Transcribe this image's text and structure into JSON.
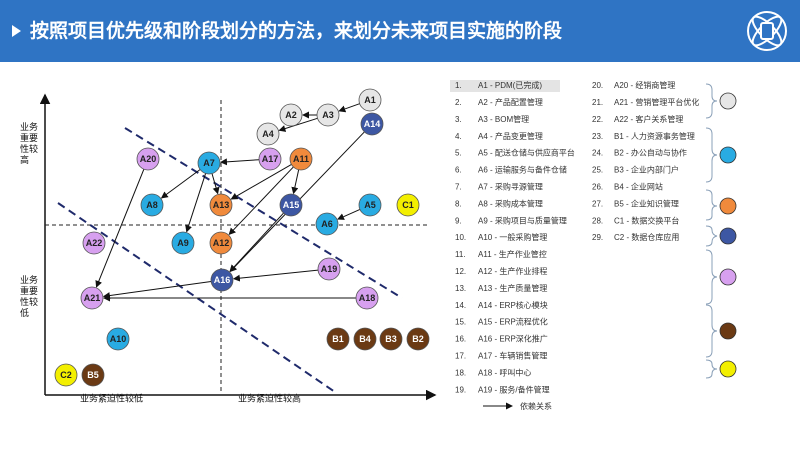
{
  "header": {
    "title": "按照项目优先级和阶段划分的方法，来划分未来项目实施的阶段"
  },
  "axes": {
    "y_high": "业务重要性较高",
    "y_low": "业务重要性较低",
    "x_low": "业务紧迫性较低",
    "x_high": "业务紧迫性较高"
  },
  "nodes": [
    {
      "label": "A1"
    },
    {
      "label": "A2"
    },
    {
      "label": "A3"
    },
    {
      "label": "A4"
    },
    {
      "label": "A14"
    },
    {
      "label": "A20"
    },
    {
      "label": "A7"
    },
    {
      "label": "A17"
    },
    {
      "label": "A11"
    },
    {
      "label": "A8"
    },
    {
      "label": "A13"
    },
    {
      "label": "A15"
    },
    {
      "label": "A5"
    },
    {
      "label": "C1"
    },
    {
      "label": "A6"
    },
    {
      "label": "A22"
    },
    {
      "label": "A9"
    },
    {
      "label": "A12"
    },
    {
      "label": "A19"
    },
    {
      "label": "A16"
    },
    {
      "label": "A21"
    },
    {
      "label": "A18"
    },
    {
      "label": "A10"
    },
    {
      "label": "B1"
    },
    {
      "label": "B4"
    },
    {
      "label": "B3"
    },
    {
      "label": "B2"
    },
    {
      "label": "C2"
    },
    {
      "label": "B5"
    }
  ],
  "legend": {
    "items": [
      {
        "num": "1.",
        "text": "A1 - PDM(已完成)"
      },
      {
        "num": "2.",
        "text": "A2 - 产品配置管理"
      },
      {
        "num": "3.",
        "text": "A3 - BOM管理"
      },
      {
        "num": "4.",
        "text": "A4 - 产品变更管理"
      },
      {
        "num": "5.",
        "text": "A5 - 配送仓储与供应商平台"
      },
      {
        "num": "6.",
        "text": "A6 - 运输服务与备件仓储"
      },
      {
        "num": "7.",
        "text": "A7 - 采购寻源管理"
      },
      {
        "num": "8.",
        "text": "A8 - 采购成本管理"
      },
      {
        "num": "9.",
        "text": "A9 - 采购项目与质量管理"
      },
      {
        "num": "10.",
        "text": "A10 - 一般采购管理"
      },
      {
        "num": "11.",
        "text": "A11 - 生产作业管控"
      },
      {
        "num": "12.",
        "text": "A12 - 生产作业排程"
      },
      {
        "num": "13.",
        "text": "A13 - 生产质量管理"
      },
      {
        "num": "14.",
        "text": "A14 - ERP核心模块"
      },
      {
        "num": "15.",
        "text": "A15 - ERP流程优化"
      },
      {
        "num": "16.",
        "text": "A16 - ERP深化推广"
      },
      {
        "num": "17.",
        "text": "A17 - 车辆销售管理"
      },
      {
        "num": "18.",
        "text": "A18 - 呼叫中心"
      },
      {
        "num": "19.",
        "text": "A19 - 服务/备件管理"
      },
      {
        "num": "20.",
        "text": "A20 - 经销商管理"
      },
      {
        "num": "21.",
        "text": "A21 - 营销管理平台优化"
      },
      {
        "num": "22.",
        "text": "A22 - 客户关系管理"
      },
      {
        "num": "23.",
        "text": "B1 - 人力资源事务管理"
      },
      {
        "num": "24.",
        "text": "B2 - 办公自动与协作"
      },
      {
        "num": "25.",
        "text": "B3 - 企业内部门户"
      },
      {
        "num": "26.",
        "text": "B4 - 企业网站"
      },
      {
        "num": "27.",
        "text": "B5 - 企业知识管理"
      },
      {
        "num": "28.",
        "text": "C1 - 数据交换平台"
      },
      {
        "num": "29.",
        "text": "C2 - 数据仓库应用"
      }
    ],
    "arrow_label": "依赖关系"
  }
}
